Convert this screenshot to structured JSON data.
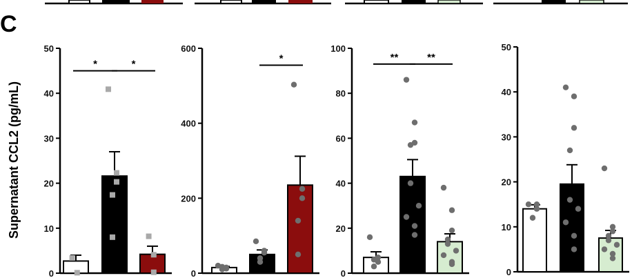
{
  "panel_letter": "C",
  "colors": {
    "white_bar": "#ffffff",
    "black_bar": "#000000",
    "red_bar": "#8b0d0d",
    "green_bar": "#d6ecd0",
    "point_gray": "#6e6e6e",
    "square_gray": "#a9a9a9"
  },
  "chart_data": [
    {
      "type": "bar",
      "ylabel": "Supernatant CCL2 (pg/mL)",
      "ylim": [
        0,
        50
      ],
      "yticks": [
        0,
        10,
        20,
        30,
        40,
        50
      ],
      "bars": [
        {
          "fill": "white",
          "mean": 2.7,
          "sem": 1.3,
          "points": [
            3.4,
            0.1
          ],
          "marker": "square"
        },
        {
          "fill": "black",
          "mean": 21.6,
          "sem": 5.4,
          "points": [
            40.9,
            22.3,
            20.3,
            17.4,
            8.0
          ],
          "marker": "square"
        },
        {
          "fill": "red",
          "mean": 4.2,
          "sem": 1.8,
          "points": [
            8.2,
            4.1,
            0.2
          ],
          "marker": "square"
        }
      ],
      "significance": [
        {
          "from": 0,
          "to": 1,
          "label": "*",
          "y": 45.0
        },
        {
          "from": 1,
          "to": 2,
          "label": "*",
          "y": 45.0
        }
      ]
    },
    {
      "type": "bar",
      "ylim": [
        0,
        600
      ],
      "yticks": [
        0,
        200,
        400,
        600
      ],
      "bars": [
        {
          "fill": "white",
          "mean": 15,
          "sem": 3,
          "points": [
            20,
            15,
            12,
            17,
            10
          ],
          "marker": "circle"
        },
        {
          "fill": "black",
          "mean": 50,
          "sem": 12,
          "points": [
            85,
            60,
            55,
            40,
            30
          ],
          "marker": "circle"
        },
        {
          "fill": "red",
          "mean": 235,
          "sem": 77,
          "points": [
            503,
            225,
            200,
            140,
            50
          ],
          "marker": "circle"
        }
      ],
      "significance": [
        {
          "from": 1,
          "to": 2,
          "label": "*",
          "y": 555
        }
      ]
    },
    {
      "type": "bar",
      "ylim": [
        0,
        100
      ],
      "yticks": [
        0,
        20,
        40,
        60,
        80,
        100
      ],
      "bars": [
        {
          "fill": "white",
          "mean": 7,
          "sem": 2.5,
          "points": [
            16,
            7,
            5,
            3,
            6
          ],
          "marker": "circle"
        },
        {
          "fill": "black",
          "mean": 43,
          "sem": 7.5,
          "points": [
            86,
            67,
            58,
            57,
            40,
            30,
            25,
            21,
            17
          ],
          "marker": "circle"
        },
        {
          "fill": "green",
          "mean": 14,
          "sem": 3.5,
          "points": [
            38,
            28,
            19,
            15,
            13,
            10,
            8,
            5,
            4
          ],
          "marker": "circle"
        }
      ],
      "significance": [
        {
          "from": 0,
          "to": 1,
          "label": "**",
          "y": 93
        },
        {
          "from": 1,
          "to": 2,
          "label": "**",
          "y": 93
        }
      ]
    },
    {
      "type": "bar",
      "ylim": [
        0,
        50
      ],
      "yticks": [
        0,
        10,
        20,
        30,
        40,
        50
      ],
      "bars": [
        {
          "fill": "white",
          "mean": 14,
          "sem": 0.9,
          "points": [
            15,
            15,
            14,
            12
          ],
          "marker": "circle"
        },
        {
          "fill": "black",
          "mean": 19.5,
          "sem": 4.3,
          "points": [
            41,
            39,
            32,
            27,
            16,
            14,
            11,
            8,
            5
          ],
          "marker": "circle"
        },
        {
          "fill": "green",
          "mean": 7.5,
          "sem": 1.7,
          "points": [
            23,
            10,
            9,
            8,
            7,
            6,
            5,
            4,
            3
          ],
          "marker": "circle"
        }
      ],
      "significance": []
    }
  ]
}
